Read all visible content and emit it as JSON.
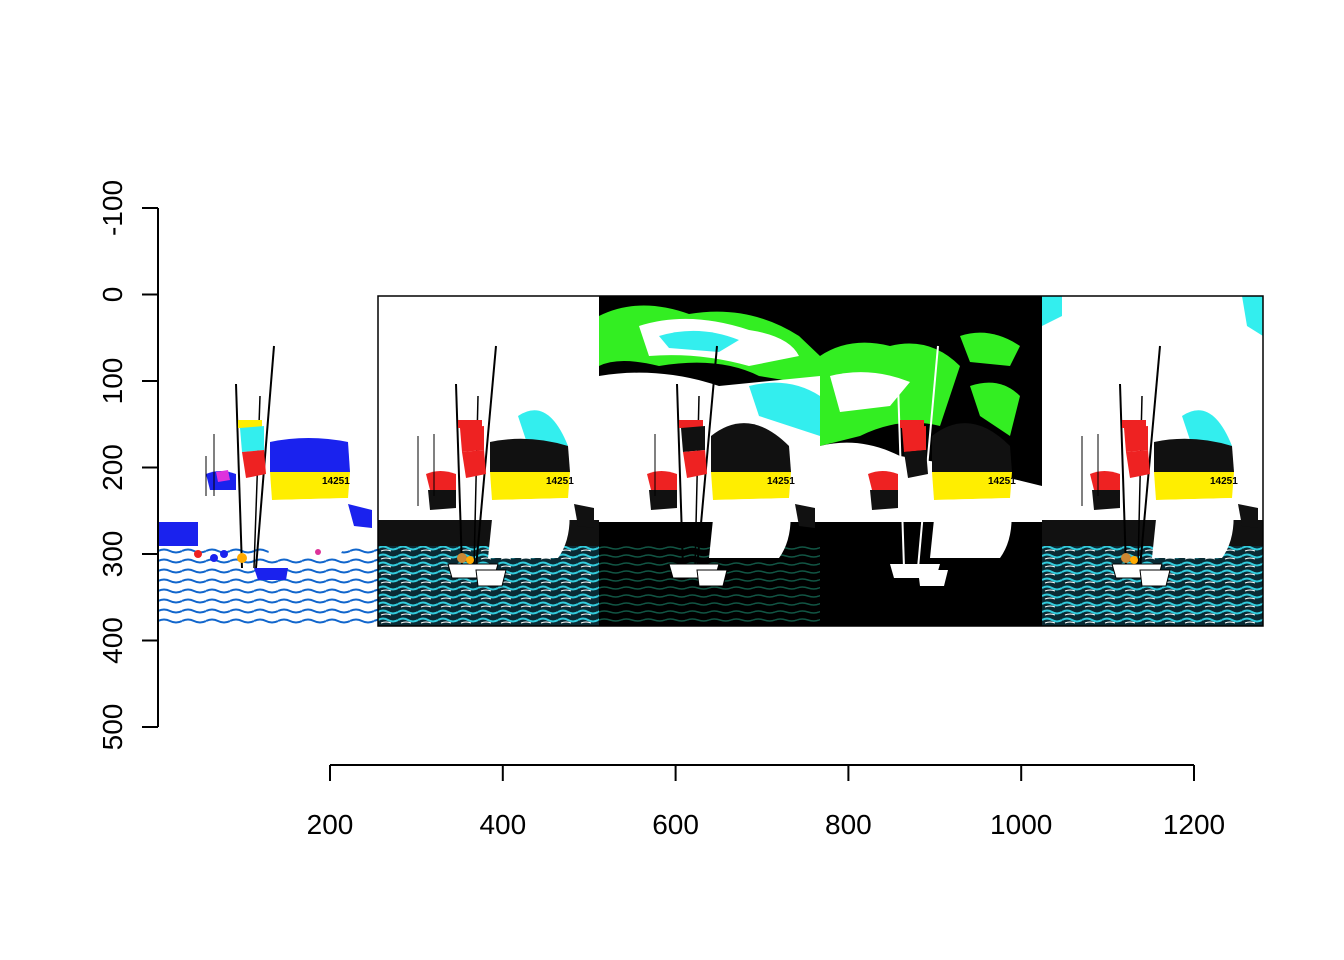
{
  "figure": {
    "y_axis": {
      "ticks": [
        "-100",
        "0",
        "100",
        "200",
        "300",
        "400",
        "500"
      ],
      "reversed": true
    },
    "x_axis": {
      "ticks": [
        "200",
        "400",
        "600",
        "800",
        "1000",
        "1200"
      ]
    },
    "panels": [
      {
        "name": "panel-1",
        "label_number": "14251"
      },
      {
        "name": "panel-2",
        "label_number": "14251"
      },
      {
        "name": "panel-3",
        "label_number": "14251"
      },
      {
        "name": "panel-4",
        "label_number": "14251"
      },
      {
        "name": "panel-5",
        "label_number": "14251"
      }
    ],
    "colors": {
      "sky_white": "#ffffff",
      "sky_black": "#000000",
      "sky_green": "#33ee22",
      "sky_cyan": "#33eeee",
      "sail_yellow": "#ffee00",
      "sail_black": "#111111",
      "sail_blue": "#1a22ee",
      "sail_red": "#ee2222",
      "water_cyan": "#22aacc",
      "water_dark": "#003333"
    }
  }
}
